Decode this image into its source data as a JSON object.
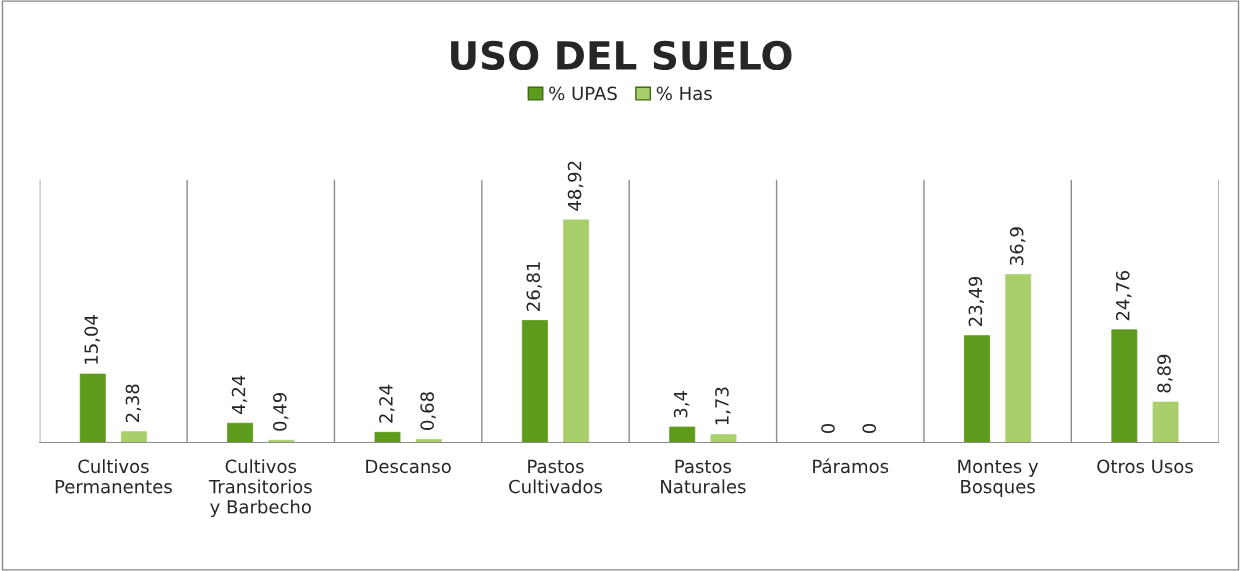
{
  "chart_data": {
    "type": "bar",
    "title": "USO DEL SUELO",
    "categories": [
      "Cultivos Permanentes",
      "Cultivos Transitorios y Barbecho",
      "Descanso",
      "Pastos Cultivados",
      "Pastos Naturales",
      "Páramos",
      "Montes y Bosques",
      "Otros Usos"
    ],
    "series": [
      {
        "name": "% UPAS",
        "color": "#5e9a1c",
        "values": [
          15.04,
          4.24,
          2.24,
          26.81,
          3.4,
          0,
          23.49,
          24.76
        ],
        "value_labels": [
          "15,04",
          "4,24",
          "2,24",
          "26,81",
          "3,4",
          "0",
          "23,49",
          "24,76"
        ]
      },
      {
        "name": "% Has",
        "color": "#a9cf6c",
        "values": [
          2.38,
          0.49,
          0.68,
          48.92,
          1.73,
          0,
          36.9,
          8.89
        ],
        "value_labels": [
          "2,38",
          "0,49",
          "0,68",
          "48,92",
          "1,73",
          "0",
          "36,9",
          "8,89"
        ]
      }
    ],
    "grid": "x",
    "legend": "top"
  }
}
